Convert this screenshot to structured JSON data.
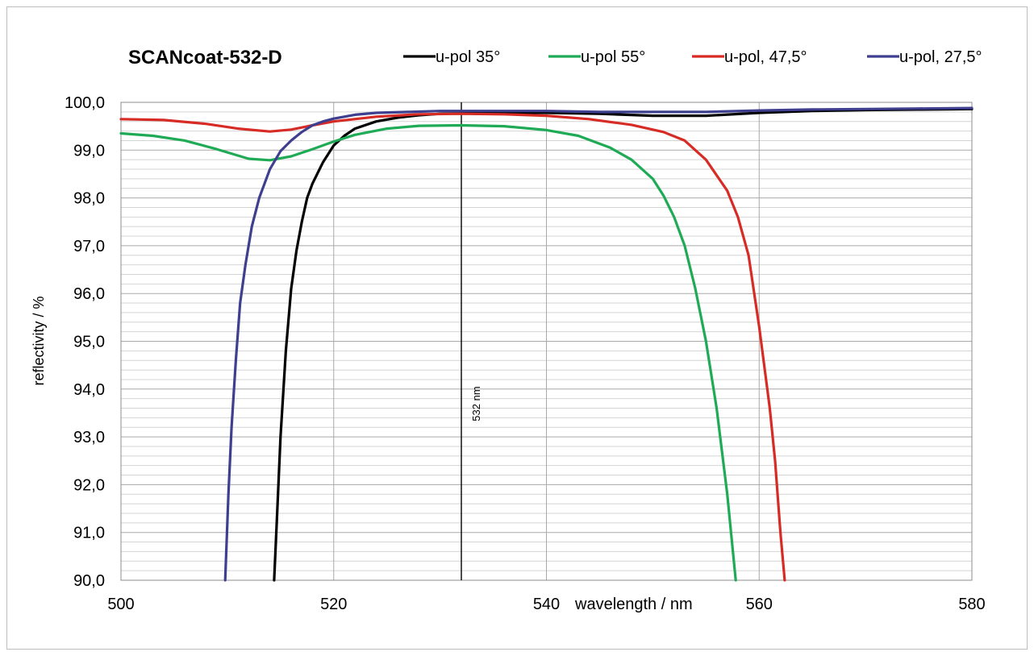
{
  "chart_data": {
    "type": "line",
    "title": "SCANcoat-532-D",
    "xlabel": "wavelength / nm",
    "ylabel": "reflectivity / %",
    "xlim": [
      500,
      580
    ],
    "ylim": [
      90,
      100
    ],
    "x_ticks": [
      "500",
      "520",
      "540",
      "560",
      "580"
    ],
    "y_ticks": [
      "90,0",
      "91,0",
      "92,0",
      "93,0",
      "94,0",
      "95,0",
      "96,0",
      "97,0",
      "98,0",
      "99,0",
      "100,0"
    ],
    "grid": true,
    "legend_position": "top",
    "annotation": {
      "x": 532,
      "label": "532 nm"
    },
    "series": [
      {
        "name": "u-pol 35°",
        "color": "#000000",
        "x": [
          514.4,
          514.7,
          515.0,
          515.5,
          516.0,
          516.5,
          517.0,
          517.5,
          518.0,
          519.0,
          520.0,
          521.0,
          522.0,
          524.0,
          526.0,
          528.0,
          530.0,
          535.0,
          540.0,
          545.0,
          550.0,
          555.0,
          560.0,
          565.0,
          570.0,
          575.0,
          580.0
        ],
        "values": [
          90.0,
          91.5,
          93.0,
          94.8,
          96.1,
          96.9,
          97.5,
          98.0,
          98.3,
          98.75,
          99.1,
          99.3,
          99.45,
          99.6,
          99.68,
          99.73,
          99.76,
          99.78,
          99.78,
          99.76,
          99.72,
          99.72,
          99.78,
          99.82,
          99.84,
          99.85,
          99.86
        ]
      },
      {
        "name": "u-pol 55°",
        "color": "#1fab55",
        "x": [
          500,
          503,
          506,
          509,
          512,
          514,
          516,
          518,
          520,
          522,
          525,
          528,
          532,
          536,
          540,
          543,
          546,
          548,
          550,
          551,
          552,
          553,
          554,
          555,
          556,
          557,
          557.8
        ],
        "values": [
          99.35,
          99.3,
          99.2,
          99.02,
          98.82,
          98.79,
          98.87,
          99.02,
          99.18,
          99.32,
          99.45,
          99.51,
          99.52,
          99.5,
          99.42,
          99.3,
          99.05,
          98.8,
          98.4,
          98.05,
          97.6,
          97.0,
          96.1,
          95.0,
          93.6,
          91.8,
          90.0
        ]
      },
      {
        "name": "u-pol, 47,5°",
        "color": "#d72c25",
        "x": [
          500,
          504,
          508,
          511,
          514,
          516,
          518,
          520,
          524,
          528,
          532,
          536,
          540,
          544,
          548,
          551,
          553,
          555,
          557,
          558,
          559,
          560,
          561,
          561.5,
          562.0,
          562.4
        ],
        "values": [
          99.65,
          99.63,
          99.55,
          99.45,
          99.39,
          99.43,
          99.52,
          99.6,
          99.7,
          99.75,
          99.76,
          99.75,
          99.72,
          99.65,
          99.53,
          99.38,
          99.2,
          98.8,
          98.15,
          97.6,
          96.8,
          95.3,
          93.6,
          92.5,
          91.0,
          90.0
        ]
      },
      {
        "name": "u-pol, 27,5°",
        "color": "#3f3f8f",
        "x": [
          509.8,
          510.1,
          510.4,
          510.8,
          511.2,
          511.7,
          512.3,
          513.0,
          514.0,
          515.0,
          516.0,
          517.0,
          518.0,
          519.0,
          520.0,
          522.0,
          524.0,
          527.0,
          530.0,
          535.0,
          540.0,
          545.0,
          550.0,
          555.0,
          560.0,
          565.0,
          570.0,
          575.0,
          580.0
        ],
        "values": [
          90.0,
          91.8,
          93.2,
          94.6,
          95.8,
          96.6,
          97.4,
          98.0,
          98.6,
          98.98,
          99.2,
          99.38,
          99.52,
          99.6,
          99.66,
          99.74,
          99.78,
          99.8,
          99.82,
          99.82,
          99.82,
          99.8,
          99.8,
          99.8,
          99.83,
          99.85,
          99.86,
          99.87,
          99.88
        ]
      }
    ]
  }
}
